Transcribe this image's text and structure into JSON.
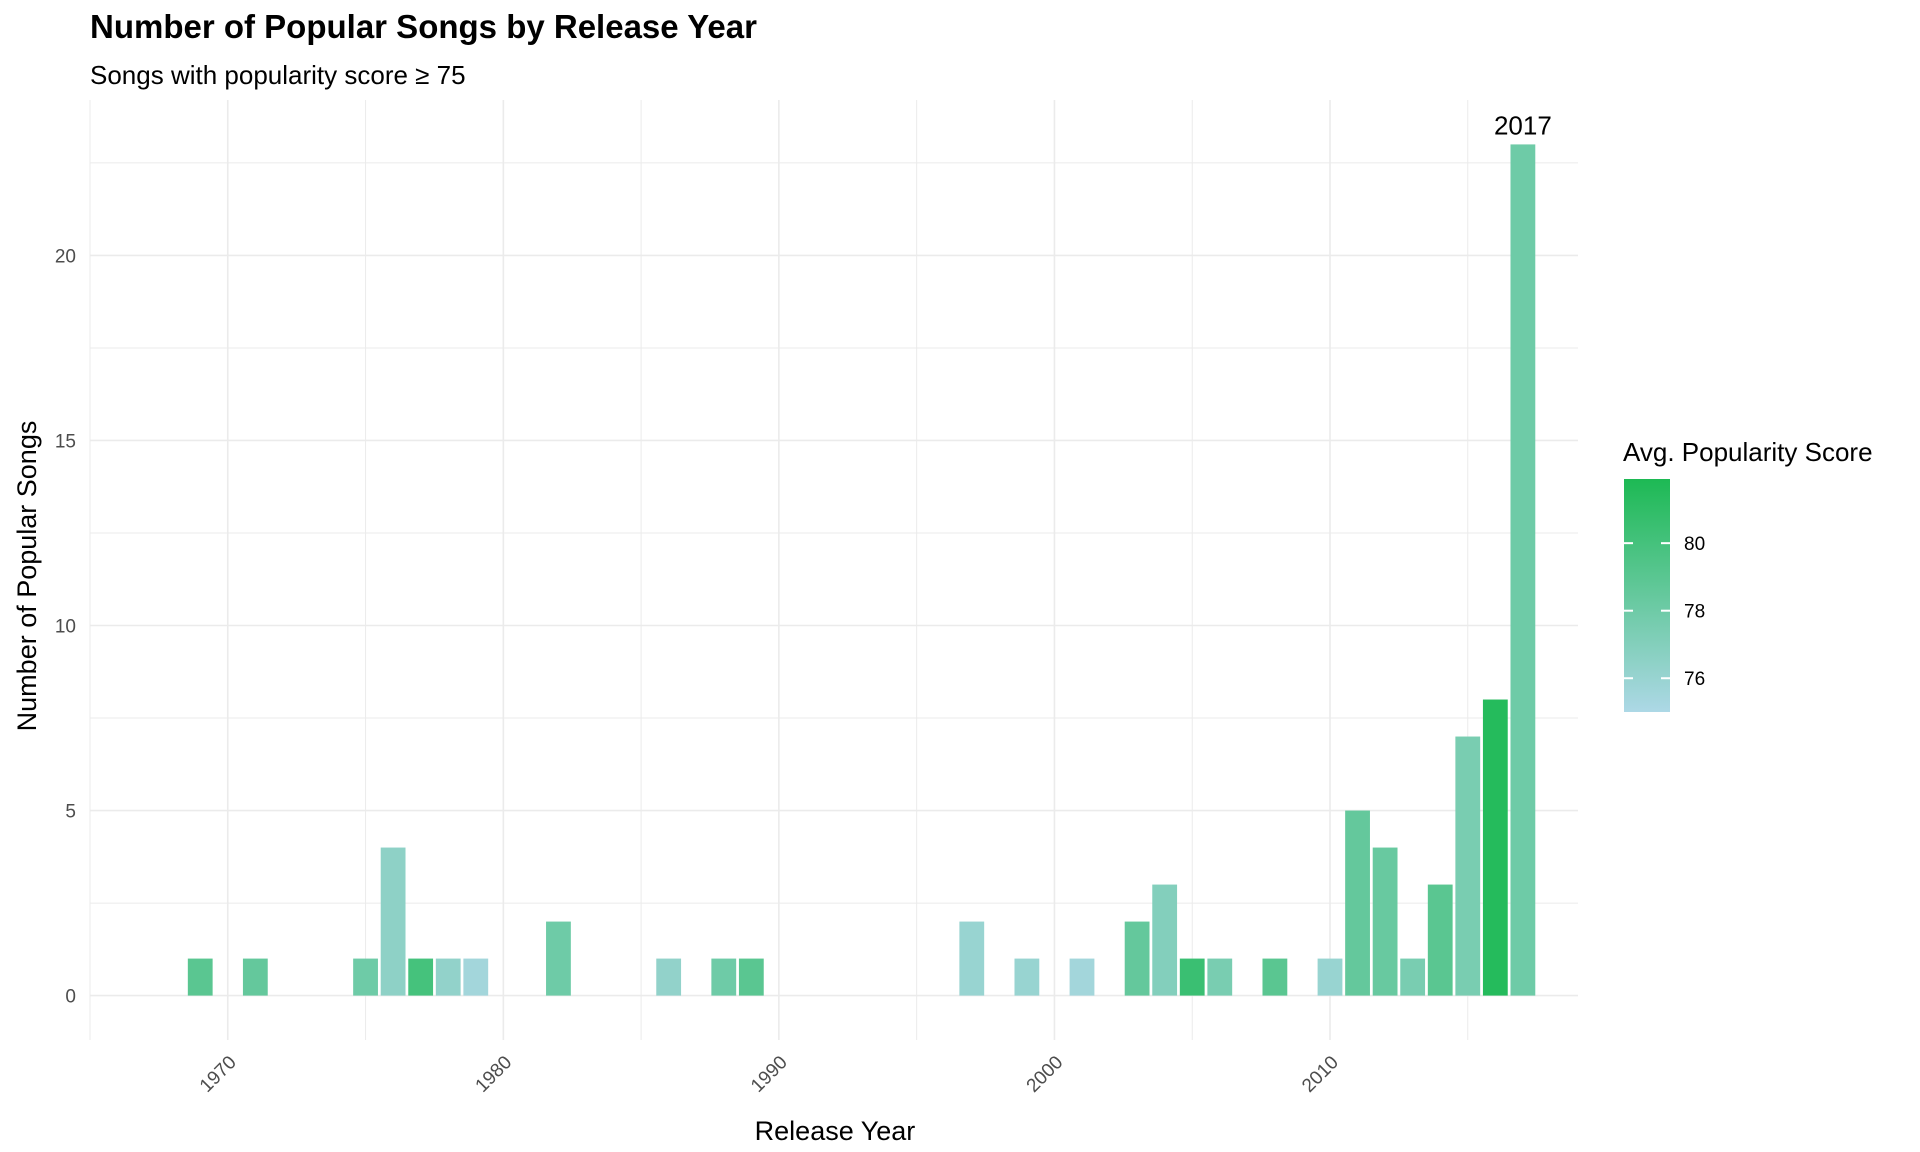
{
  "chart_data": {
    "type": "bar",
    "title": "Number of Popular Songs by Release Year",
    "subtitle": "Songs with popularity score ≥ 75",
    "xlabel": "Release Year",
    "ylabel": "Number of Popular Songs",
    "xlim": [
      1965,
      2019
    ],
    "ylim": [
      -1.2,
      24.2
    ],
    "x_ticks": [
      1970,
      1980,
      1990,
      2000,
      2010
    ],
    "y_ticks": [
      0,
      5,
      10,
      15,
      20
    ],
    "grid": true,
    "legend": {
      "title": "Avg. Popularity Score",
      "placement": "right",
      "ticks": [
        76,
        78,
        80
      ],
      "range": [
        75,
        81.9
      ],
      "color_low": "#ADD8E6",
      "color_high": "#1DB954"
    },
    "annotation": {
      "text": "2017",
      "x": 2017,
      "y": 23
    },
    "bars": [
      {
        "year": 1969,
        "count": 1,
        "avg_popularity": 79
      },
      {
        "year": 1971,
        "count": 1,
        "avg_popularity": 78.5
      },
      {
        "year": 1975,
        "count": 1,
        "avg_popularity": 78
      },
      {
        "year": 1976,
        "count": 4,
        "avg_popularity": 76.5
      },
      {
        "year": 1977,
        "count": 1,
        "avg_popularity": 80
      },
      {
        "year": 1978,
        "count": 1,
        "avg_popularity": 76.3
      },
      {
        "year": 1979,
        "count": 1,
        "avg_popularity": 75.5
      },
      {
        "year": 1982,
        "count": 2,
        "avg_popularity": 78
      },
      {
        "year": 1986,
        "count": 1,
        "avg_popularity": 76.3
      },
      {
        "year": 1988,
        "count": 1,
        "avg_popularity": 78
      },
      {
        "year": 1989,
        "count": 1,
        "avg_popularity": 79
      },
      {
        "year": 1997,
        "count": 2,
        "avg_popularity": 76
      },
      {
        "year": 1999,
        "count": 1,
        "avg_popularity": 76
      },
      {
        "year": 2001,
        "count": 1,
        "avg_popularity": 75.5
      },
      {
        "year": 2003,
        "count": 2,
        "avg_popularity": 78.5
      },
      {
        "year": 2004,
        "count": 3,
        "avg_popularity": 77
      },
      {
        "year": 2005,
        "count": 1,
        "avg_popularity": 80.5
      },
      {
        "year": 2006,
        "count": 1,
        "avg_popularity": 77.5
      },
      {
        "year": 2008,
        "count": 1,
        "avg_popularity": 79
      },
      {
        "year": 2010,
        "count": 1,
        "avg_popularity": 76
      },
      {
        "year": 2011,
        "count": 5,
        "avg_popularity": 78.5
      },
      {
        "year": 2012,
        "count": 4,
        "avg_popularity": 78.3
      },
      {
        "year": 2013,
        "count": 1,
        "avg_popularity": 77.5
      },
      {
        "year": 2014,
        "count": 3,
        "avg_popularity": 79
      },
      {
        "year": 2015,
        "count": 7,
        "avg_popularity": 77.5
      },
      {
        "year": 2016,
        "count": 8,
        "avg_popularity": 81.5
      },
      {
        "year": 2017,
        "count": 23,
        "avg_popularity": 78
      }
    ]
  }
}
